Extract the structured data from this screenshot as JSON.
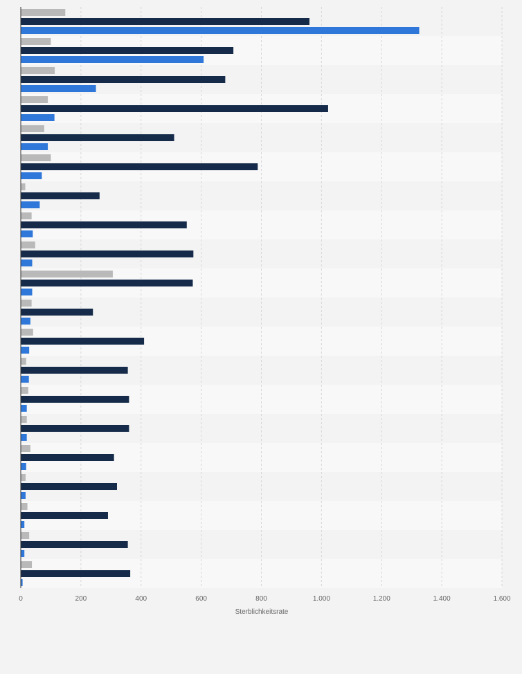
{
  "chart_data": {
    "type": "bar",
    "orientation": "horizontal",
    "xlabel": "Sterblichkeitsrate",
    "ylabel": "",
    "xlim": [
      0,
      1600
    ],
    "x_ticks": [
      0,
      200,
      400,
      600,
      800,
      1000,
      1200,
      1400,
      1600
    ],
    "x_tick_labels": [
      "0",
      "200",
      "400",
      "600",
      "800",
      "1.000",
      "1.200",
      "1.400",
      "1.600"
    ],
    "grid": true,
    "legend": "none",
    "colors": [
      "#b9b9b9",
      "#152b49",
      "#2f78d9"
    ],
    "series": [
      {
        "values": [
          148,
          100,
          113,
          90,
          78,
          100,
          15,
          36,
          48,
          306,
          36,
          41,
          18,
          25,
          20,
          32,
          16,
          22,
          28,
          37
        ]
      },
      {
        "values": [
          960,
          707,
          680,
          1022,
          510,
          788,
          262,
          552,
          574,
          572,
          240,
          410,
          356,
          360,
          360,
          310,
          320,
          290,
          356,
          364
        ]
      },
      {
        "values": [
          1325,
          608,
          250,
          112,
          90,
          70,
          63,
          40,
          38,
          38,
          32,
          28,
          27,
          20,
          20,
          18,
          16,
          12,
          12,
          6
        ]
      }
    ]
  }
}
